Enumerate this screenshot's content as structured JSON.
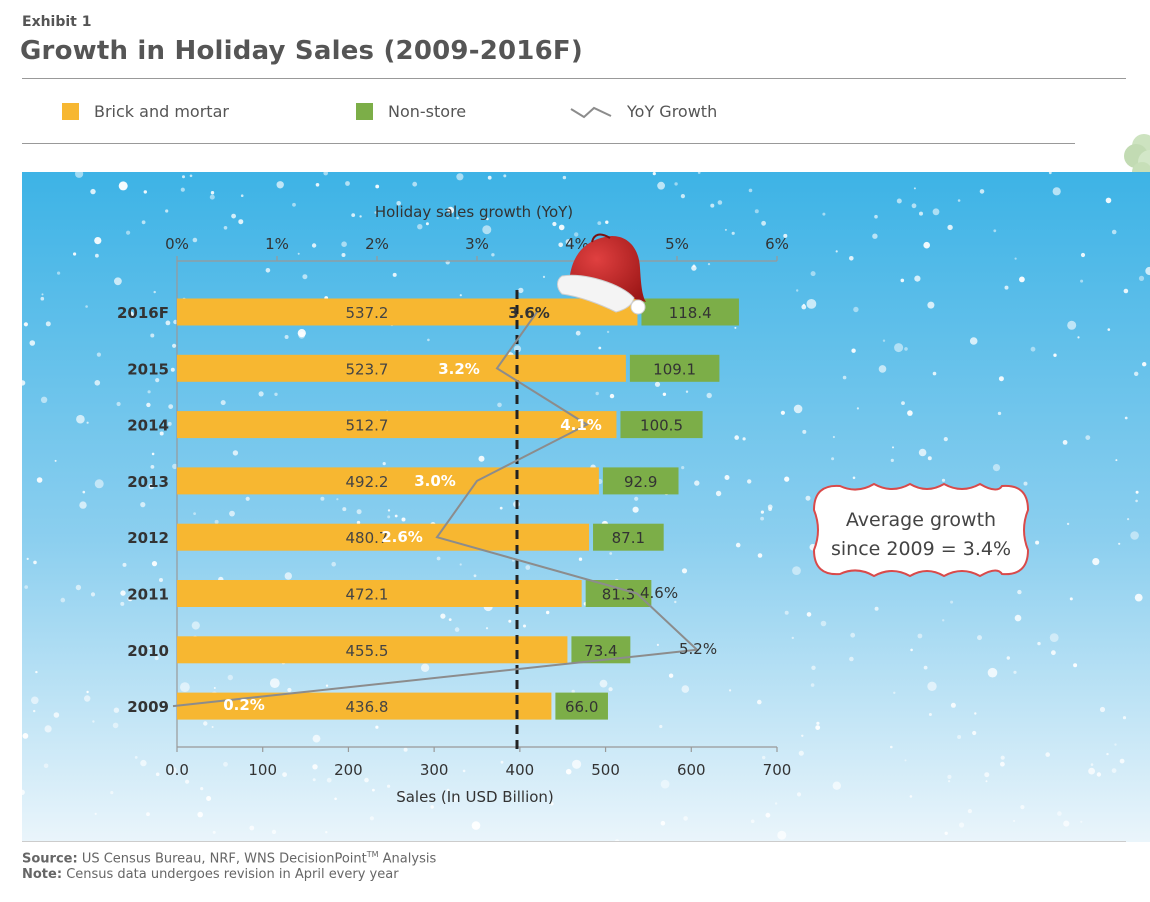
{
  "header": {
    "exhibit": "Exhibit 1",
    "title": "Growth in Holiday Sales (2009-2016F)"
  },
  "legend": {
    "brick": "Brick and mortar",
    "nonstore": "Non-store",
    "yoy": "YoY Growth"
  },
  "colors": {
    "brick": "#f7b731",
    "nonstore": "#7cae48",
    "yoy_line": "#8c8c8c",
    "sky_top": "#3db3e6",
    "sky_bottom": "#eaf5fb",
    "callout_border": "#d94a4a"
  },
  "callout": {
    "line1": "Average growth",
    "line2": "since 2009 = 3.4%"
  },
  "footer": {
    "source_label": "Source:",
    "source_text": "US Census Bureau, NRF, WNS DecisionPoint",
    "source_tm": "TM",
    "source_tail": " Analysis",
    "note_label": "Note:",
    "note_text": "Census data undergoes revision in April every year"
  },
  "chart_data": {
    "type": "bar",
    "orientation": "horizontal",
    "stacked": true,
    "categories": [
      "2016F",
      "2015",
      "2014",
      "2013",
      "2012",
      "2011",
      "2010",
      "2009"
    ],
    "series": [
      {
        "name": "Brick and mortar",
        "values": [
          537.2,
          523.7,
          512.7,
          492.2,
          480.7,
          472.1,
          455.5,
          436.8
        ],
        "labels": [
          "537.2",
          "523.7",
          "512.7",
          "492.2",
          "480.7",
          "472.1",
          "455.5",
          "436.8"
        ]
      },
      {
        "name": "Non-store",
        "values": [
          118.4,
          109.1,
          100.5,
          92.9,
          87.1,
          81.3,
          73.4,
          66.0
        ],
        "labels": [
          "118.4",
          "109.1",
          "100.5",
          "92.9",
          "87.1",
          "81.3",
          "73.4",
          "66.0"
        ]
      }
    ],
    "line_series": {
      "name": "YoY Growth",
      "values": [
        3.6,
        3.2,
        4.1,
        3.0,
        2.6,
        4.6,
        5.2,
        0.2
      ],
      "labels": [
        "3.6%",
        "3.2%",
        "4.1%",
        "3.0%",
        "2.6%",
        "4.6%",
        "5.2%",
        "0.2%"
      ]
    },
    "average_growth": 3.4,
    "xlabel": "Sales (In USD Billion)",
    "xlim": [
      0,
      700
    ],
    "xticks": [
      0,
      100,
      200,
      300,
      400,
      500,
      600,
      700
    ],
    "xtick_labels": [
      "0.0",
      "100",
      "200",
      "300",
      "400",
      "500",
      "600",
      "700"
    ],
    "x2label": "Holiday sales growth (YoY)",
    "x2lim": [
      0,
      6
    ],
    "x2ticks": [
      0,
      1,
      2,
      3,
      4,
      5,
      6
    ],
    "x2tick_labels": [
      "0%",
      "1%",
      "2%",
      "3%",
      "4%",
      "5%",
      "6%"
    ],
    "grid": false,
    "legend_position": "top"
  }
}
